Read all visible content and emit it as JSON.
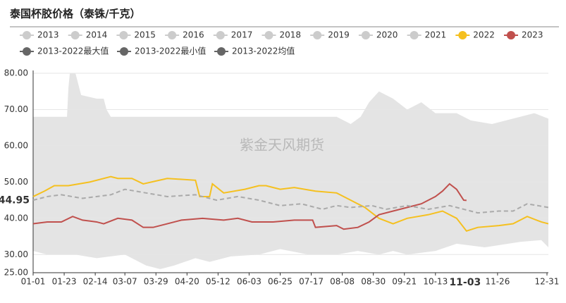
{
  "chart_data": {
    "type": "line",
    "title": "泰国杯胶价格（泰铢/千克）",
    "watermark": "紫金天风期货",
    "xlim": [
      0,
      365
    ],
    "ylim": [
      25,
      80
    ],
    "yticks": [
      {
        "value": 25,
        "label": "25.00"
      },
      {
        "value": 30,
        "label": "30.00"
      },
      {
        "value": 40,
        "label": "40.00"
      },
      {
        "value": 50,
        "label": "50.00"
      },
      {
        "value": 60,
        "label": "60.00"
      },
      {
        "value": 70,
        "label": "70.00"
      },
      {
        "value": 80,
        "label": "80.00"
      }
    ],
    "xticks": [
      {
        "value": 0,
        "label": "01-01"
      },
      {
        "value": 22,
        "label": "01-23"
      },
      {
        "value": 44,
        "label": "02-14"
      },
      {
        "value": 65,
        "label": "03-07"
      },
      {
        "value": 87,
        "label": "03-29"
      },
      {
        "value": 109,
        "label": "04-20"
      },
      {
        "value": 131,
        "label": "05-12"
      },
      {
        "value": 153,
        "label": "06-03"
      },
      {
        "value": 175,
        "label": "06-25"
      },
      {
        "value": 197,
        "label": "07-17"
      },
      {
        "value": 219,
        "label": "08-08"
      },
      {
        "value": 241,
        "label": "08-30"
      },
      {
        "value": 263,
        "label": "09-21"
      },
      {
        "value": 285,
        "label": "10-13"
      },
      {
        "value": 329,
        "label": "11-26"
      },
      {
        "value": 364,
        "label": "12-31"
      }
    ],
    "x_highlight": {
      "value": 306,
      "label": "11-03"
    },
    "y_highlight": 44.95,
    "highlight_color": "#c0504d",
    "grid": true,
    "series": [
      {
        "name": "2013",
        "color": "#cccccc",
        "visible": false
      },
      {
        "name": "2014",
        "color": "#cccccc",
        "visible": false
      },
      {
        "name": "2015",
        "color": "#cccccc",
        "visible": false
      },
      {
        "name": "2016",
        "color": "#cccccc",
        "visible": false
      },
      {
        "name": "2017",
        "color": "#cccccc",
        "visible": false
      },
      {
        "name": "2018",
        "color": "#cccccc",
        "visible": false
      },
      {
        "name": "2019",
        "color": "#cccccc",
        "visible": false
      },
      {
        "name": "2020",
        "color": "#cccccc",
        "visible": false
      },
      {
        "name": "2021",
        "color": "#cccccc",
        "visible": false
      },
      {
        "name": "2022",
        "color": "#f5c01f",
        "visible": true,
        "x": [
          0,
          8,
          15,
          25,
          40,
          55,
          60,
          70,
          78,
          95,
          115,
          118,
          125,
          127,
          135,
          150,
          160,
          165,
          175,
          185,
          200,
          215,
          225,
          235,
          245,
          255,
          265,
          280,
          290,
          300,
          307,
          315,
          330,
          340,
          350,
          360,
          365
        ],
        "values": [
          46,
          47.5,
          49,
          49,
          50,
          51.5,
          51,
          51,
          49.5,
          51,
          50.5,
          46,
          46,
          49.5,
          47,
          48,
          49,
          49,
          48,
          48.5,
          47.5,
          47,
          45,
          43,
          40,
          38.5,
          40,
          41,
          42,
          40,
          36.5,
          37.5,
          38,
          38.5,
          40.5,
          39,
          38.5
        ]
      },
      {
        "name": "2023",
        "color": "#c0504d",
        "visible": true,
        "x": [
          0,
          10,
          20,
          28,
          35,
          45,
          50,
          60,
          70,
          78,
          85,
          95,
          105,
          120,
          135,
          145,
          155,
          170,
          185,
          198,
          200,
          215,
          220,
          230,
          238,
          245,
          255,
          265,
          275,
          285,
          290,
          295,
          300,
          305,
          307
        ],
        "values": [
          38.5,
          39,
          39,
          40.5,
          39.5,
          39,
          38.5,
          40,
          39.5,
          37.5,
          37.5,
          38.5,
          39.5,
          40,
          39.5,
          40,
          39,
          39,
          39.5,
          39.5,
          37.5,
          38,
          37,
          37.5,
          39,
          41,
          42,
          43,
          44,
          46,
          47.5,
          49.5,
          48,
          45,
          44.95
        ]
      },
      {
        "name": "2013-2022最大值",
        "color": "#666666",
        "fill": "#e4e4e4",
        "visible": true,
        "x": [
          0,
          24,
          25,
          26,
          30,
          34,
          45,
          50,
          52,
          55,
          200,
          215,
          225,
          232,
          238,
          245,
          255,
          265,
          275,
          285,
          300,
          310,
          325,
          345,
          355,
          365
        ],
        "values": [
          68,
          68,
          76,
          80,
          80,
          74,
          73,
          73,
          70,
          68,
          68,
          68,
          66,
          68,
          72,
          75,
          73,
          70,
          72,
          69,
          69,
          67,
          66,
          68,
          69,
          67.5
        ]
      },
      {
        "name": "2013-2022最小值",
        "color": "#666666",
        "fill": "#ffffff",
        "visible": true,
        "x": [
          0,
          10,
          30,
          45,
          65,
          80,
          90,
          100,
          115,
          125,
          140,
          160,
          175,
          195,
          215,
          230,
          245,
          255,
          265,
          285,
          300,
          320,
          345,
          360,
          365
        ],
        "values": [
          31,
          30,
          30,
          29,
          30,
          27,
          26,
          27,
          29,
          28,
          29.5,
          30,
          31.5,
          30,
          30,
          31,
          30,
          31,
          30,
          31,
          33,
          32,
          33.5,
          34,
          32
        ]
      },
      {
        "name": "2013-2022均值",
        "color": "#666666",
        "stroke": "#aaaaaa",
        "dashed": true,
        "visible": true,
        "x": [
          0,
          10,
          20,
          35,
          55,
          65,
          80,
          95,
          115,
          130,
          145,
          160,
          175,
          190,
          205,
          215,
          225,
          240,
          250,
          265,
          280,
          295,
          305,
          315,
          330,
          340,
          350,
          365
        ],
        "values": [
          45,
          46,
          46.5,
          45.5,
          46.5,
          48,
          47,
          46,
          46.5,
          45,
          46,
          45,
          43.5,
          44,
          42.5,
          43.5,
          43,
          43.5,
          42.5,
          43.5,
          42.5,
          43.5,
          42.5,
          41.5,
          42,
          42,
          44,
          43
        ]
      }
    ]
  }
}
